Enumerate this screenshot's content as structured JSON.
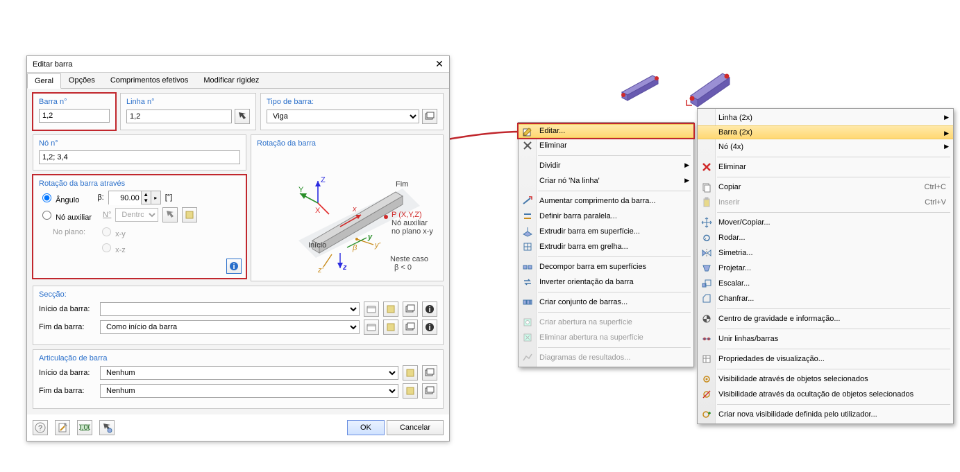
{
  "dialog": {
    "title": "Editar barra",
    "tabs": [
      "Geral",
      "Opções",
      "Comprimentos efetivos",
      "Modificar rigidez"
    ],
    "active_tab": 0,
    "barra_no": {
      "label": "Barra n°",
      "value": "1,2"
    },
    "linha_no": {
      "label": "Linha n°",
      "value": "1,2"
    },
    "tipo_barra": {
      "label": "Tipo de barra:",
      "options": [
        "Viga"
      ],
      "value": "Viga"
    },
    "no_no": {
      "label": "Nó n°",
      "value": "1,2; 3,4"
    },
    "rotacao": {
      "legend": "Rotação da barra através",
      "angulo_label": "Ângulo",
      "beta_label": "β:",
      "angulo_value": "90.00",
      "units": "[°]",
      "no_aux_label": "Nó auxiliar",
      "no_aux_n": "N°",
      "no_aux_opt": "Dentro",
      "no_plano_label": "No plano:",
      "plane_xy": "x-y",
      "plane_xz": "x-z"
    },
    "rot_preview": {
      "legend": "Rotação da barra",
      "inicio": "Início",
      "fim": "Fim",
      "p_label": "P (X,Y,Z)",
      "p_sub1": "Nó auxiliar",
      "p_sub2": "no plano x-y",
      "case_text": "Neste caso",
      "case_beta": "β < 0",
      "axes": {
        "X": "X",
        "Y": "Y",
        "Z": "Z",
        "x": "x",
        "y": "y",
        "z": "z",
        "xp": "x'",
        "yp": "y'",
        "zp": "z'",
        "beta": "β"
      },
      "colors": {
        "beam_top": "#d0d0d0",
        "beam_side": "#b8b8b8",
        "global_X": "#2a8f2a",
        "global_Y": "#2a2ae0",
        "global_Z": "#e02a2a",
        "local": "#2a8f2a",
        "prime": "#c88b1a",
        "p_dot": "#d02a2a"
      }
    },
    "seccao": {
      "legend": "Secção:",
      "inicio_label": "Início da barra:",
      "inicio_value": "",
      "fim_label": "Fim da barra:",
      "fim_value": "Como início da barra"
    },
    "articulacao": {
      "legend": "Articulação de barra",
      "inicio_label": "Início da barra:",
      "inicio_value": "Nenhum",
      "fim_label": "Fim da barra:",
      "fim_value": "Nenhum"
    },
    "ok": "OK",
    "cancel": "Cancelar"
  },
  "menu1": {
    "items": [
      {
        "label": "Editar...",
        "icon": "edit",
        "highlight": true,
        "boxed": true
      },
      {
        "label": "Eliminar",
        "icon": "delete"
      },
      {
        "sep": true
      },
      {
        "label": "Dividir",
        "submenu": true
      },
      {
        "label": "Criar nó 'Na linha'",
        "submenu": true
      },
      {
        "sep": true
      },
      {
        "label": "Aumentar comprimento da barra...",
        "icon": "extend"
      },
      {
        "label": "Definir barra paralela...",
        "icon": "parallel"
      },
      {
        "label": "Extrudir barra em superfície...",
        "icon": "extrude-surf"
      },
      {
        "label": "Extrudir barra em grelha...",
        "icon": "extrude-grid"
      },
      {
        "sep": true
      },
      {
        "label": "Decompor barra em superfícies",
        "icon": "decompose"
      },
      {
        "label": "Inverter orientação da barra",
        "icon": "reverse"
      },
      {
        "sep": true
      },
      {
        "label": "Criar conjunto de barras...",
        "icon": "group"
      },
      {
        "sep": true
      },
      {
        "label": "Criar abertura na superfície",
        "icon": "opening",
        "disabled": true
      },
      {
        "label": "Eliminar abertura na superfície",
        "icon": "opening-del",
        "disabled": true
      },
      {
        "sep": true
      },
      {
        "label": "Diagramas de resultados...",
        "icon": "diagram",
        "disabled": true
      }
    ]
  },
  "menu2": {
    "items": [
      {
        "label": "Linha (2x)",
        "submenu": true
      },
      {
        "label": "Barra (2x)",
        "submenu": true,
        "highlight": true
      },
      {
        "label": "Nó (4x)",
        "submenu": true
      },
      {
        "sep": true
      },
      {
        "label": "Eliminar",
        "icon": "delete-red"
      },
      {
        "sep": true
      },
      {
        "label": "Copiar",
        "shortcut": "Ctrl+C",
        "icon": "copy"
      },
      {
        "label": "Inserir",
        "shortcut": "Ctrl+V",
        "icon": "paste",
        "disabled": true
      },
      {
        "sep": true
      },
      {
        "label": "Mover/Copiar...",
        "icon": "move"
      },
      {
        "label": "Rodar...",
        "icon": "rotate"
      },
      {
        "label": "Simetria...",
        "icon": "mirror"
      },
      {
        "label": "Projetar...",
        "icon": "project"
      },
      {
        "label": "Escalar...",
        "icon": "scale"
      },
      {
        "label": "Chanfrar...",
        "icon": "chamfer"
      },
      {
        "sep": true
      },
      {
        "label": "Centro de gravidade e informação...",
        "icon": "cg"
      },
      {
        "sep": true
      },
      {
        "label": "Unir linhas/barras",
        "icon": "join"
      },
      {
        "sep": true
      },
      {
        "label": "Propriedades de visualização...",
        "icon": "props"
      },
      {
        "sep": true
      },
      {
        "label": "Visibilidade através de objetos selecionados",
        "icon": "vis-sel"
      },
      {
        "label": "Visibilidade através da ocultação de objetos selecionados",
        "icon": "vis-hide"
      },
      {
        "sep": true
      },
      {
        "label": "Criar nova visibilidade definida pelo utilizador...",
        "icon": "vis-new"
      }
    ]
  },
  "bars3d": {
    "node_color": "#d02a2a",
    "face_top": "#9a8fd4",
    "face_side": "#685ab0",
    "outline": "#5a4ea0"
  },
  "arrow_color": "#c1272d"
}
